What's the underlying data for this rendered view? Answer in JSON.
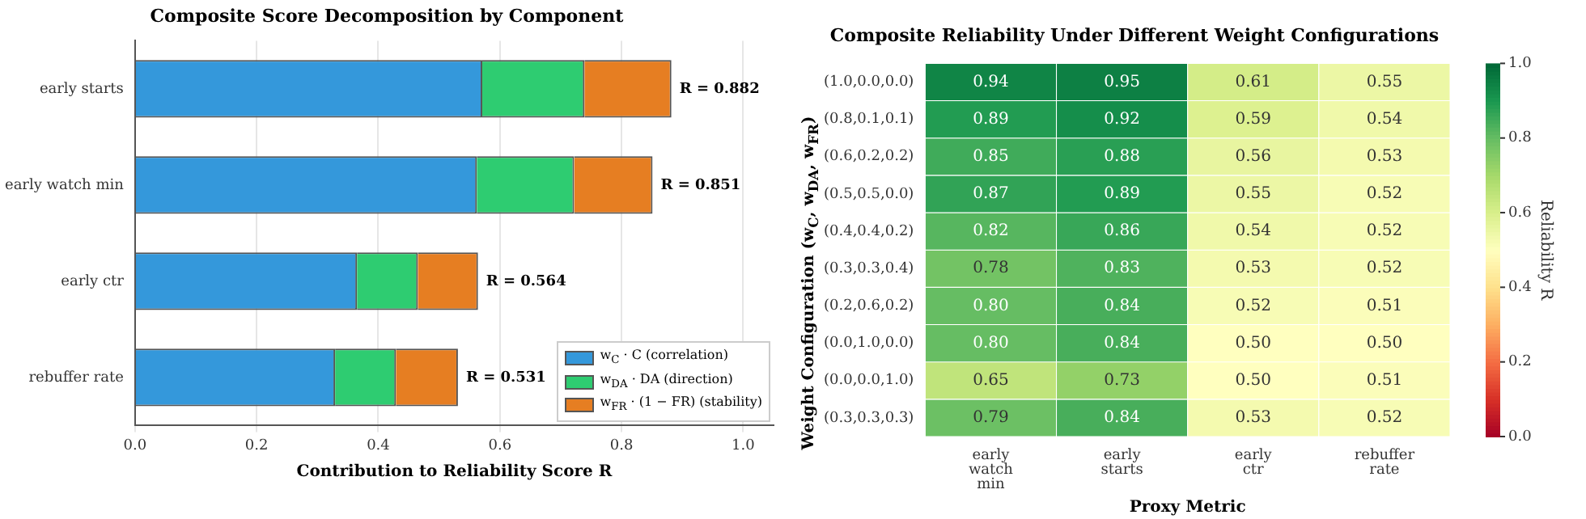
{
  "chart_data": [
    {
      "type": "bar",
      "orientation": "horizontal",
      "stacked": true,
      "title": "Composite Score Decomposition by Component",
      "xlabel": "Contribution to Reliability Score R",
      "categories": [
        "early starts",
        "early watch min",
        "early ctr",
        "rebuffer rate"
      ],
      "series": [
        {
          "name": "w$_{C}$ · C (correlation)",
          "color": "#3498db",
          "values": [
            0.571,
            0.562,
            0.365,
            0.329
          ]
        },
        {
          "name": "w$_{DA}$ · DA (direction)",
          "color": "#2ecc71",
          "values": [
            0.168,
            0.16,
            0.1,
            0.1
          ]
        },
        {
          "name": "w$_{FR}$ · (1 − FR) (stability)",
          "color": "#e67e22",
          "values": [
            0.143,
            0.129,
            0.099,
            0.102
          ]
        }
      ],
      "totals": [
        "R = 0.882",
        "R = 0.851",
        "R = 0.564",
        "R = 0.531"
      ],
      "xlim": [
        0,
        1.05
      ],
      "xticks": [
        {
          "value": 0,
          "label": "0.0"
        },
        {
          "value": 0.2,
          "label": "0.2"
        },
        {
          "value": 0.4,
          "label": "0.4"
        },
        {
          "value": 0.6,
          "label": "0.6"
        },
        {
          "value": 0.8,
          "label": "0.8"
        },
        {
          "value": 1,
          "label": "1.0"
        }
      ],
      "grid": "x",
      "legend": "bottom right"
    },
    {
      "type": "heatmap",
      "title": "Composite Reliability Under Different Weight Configurations",
      "xlabel": "Proxy Metric",
      "ylabel": "Weight Configuration (w$_{C}$, w$_{DA}$, w$_{FR}$)",
      "clabel": "Reliability R",
      "categories": [
        "early watch min",
        "early starts",
        "early ctr",
        "rebuffer rate"
      ],
      "y_categories": [
        "(1.0,0.0,0.0)",
        "(0.8,0.1,0.1)",
        "(0.6,0.2,0.2)",
        "(0.5,0.5,0.0)",
        "(0.4,0.4,0.2)",
        "(0.3,0.3,0.4)",
        "(0.2,0.6,0.2)",
        "(0.0,1.0,0.0)",
        "(0.0,0.0,1.0)",
        "(0.3,0.3,0.3)"
      ],
      "cells": [
        [
          0.94,
          0.95,
          0.61,
          0.55
        ],
        [
          0.89,
          0.92,
          0.59,
          0.54
        ],
        [
          0.85,
          0.88,
          0.56,
          0.53
        ],
        [
          0.87,
          0.89,
          0.55,
          0.52
        ],
        [
          0.82,
          0.86,
          0.54,
          0.52
        ],
        [
          0.78,
          0.83,
          0.53,
          0.52
        ],
        [
          0.8,
          0.84,
          0.52,
          0.51
        ],
        [
          0.8,
          0.84,
          0.5,
          0.5
        ],
        [
          0.65,
          0.73,
          0.5,
          0.51
        ],
        [
          0.79,
          0.84,
          0.53,
          0.52
        ]
      ],
      "cell_labels": [
        [
          "0.94",
          "0.95",
          "0.61",
          "0.55"
        ],
        [
          "0.89",
          "0.92",
          "0.59",
          "0.54"
        ],
        [
          "0.85",
          "0.88",
          "0.56",
          "0.53"
        ],
        [
          "0.87",
          "0.89",
          "0.55",
          "0.52"
        ],
        [
          "0.82",
          "0.86",
          "0.54",
          "0.52"
        ],
        [
          "0.78",
          "0.83",
          "0.53",
          "0.52"
        ],
        [
          "0.80",
          "0.84",
          "0.52",
          "0.51"
        ],
        [
          "0.80",
          "0.84",
          "0.50",
          "0.50"
        ],
        [
          "0.65",
          "0.73",
          "0.50",
          "0.51"
        ],
        [
          "0.79",
          "0.84",
          "0.53",
          "0.52"
        ]
      ],
      "clim": [
        0,
        1
      ],
      "cticks": [
        {
          "value": 0,
          "label": "0.0"
        },
        {
          "value": 0.2,
          "label": "0.2"
        },
        {
          "value": 0.4,
          "label": "0.4"
        },
        {
          "value": 0.6,
          "label": "0.6"
        },
        {
          "value": 0.8,
          "label": "0.8"
        },
        {
          "value": 1,
          "label": "1.0"
        }
      ]
    }
  ]
}
